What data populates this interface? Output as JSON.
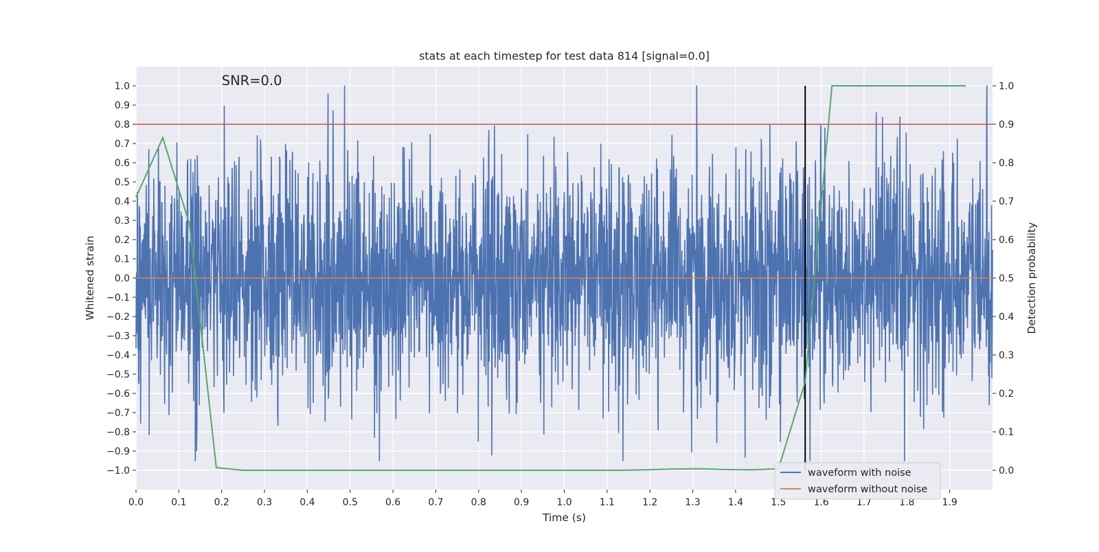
{
  "chart_data": {
    "type": "line",
    "title": "stats at each timestep for test data 814 [signal=0.0]",
    "xlabel": "Time (s)",
    "ylabel": "Whitened strain",
    "y2label": "Detection probability",
    "annotation": "SNR=0.0",
    "xlim": [
      0.0,
      2.0
    ],
    "ylim": [
      -1.1,
      1.1
    ],
    "y2lim": [
      -0.05,
      1.05
    ],
    "xticks": [
      "0.0",
      "0.1",
      "0.2",
      "0.3",
      "0.4",
      "0.5",
      "0.6",
      "0.7",
      "0.8",
      "0.9",
      "1.0",
      "1.1",
      "1.2",
      "1.3",
      "1.4",
      "1.5",
      "1.6",
      "1.7",
      "1.8",
      "1.9"
    ],
    "yticks": [
      "1.0",
      "0.9",
      "0.8",
      "0.7",
      "0.6",
      "0.5",
      "0.4",
      "0.3",
      "0.2",
      "0.1",
      "0.0",
      "−0.1",
      "−0.2",
      "−0.3",
      "−0.4",
      "−0.5",
      "−0.6",
      "−0.7",
      "−0.8",
      "−0.9",
      "−1.0"
    ],
    "y2ticks": [
      "1.0",
      "0.9",
      "0.8",
      "0.7",
      "0.6",
      "0.5",
      "0.4",
      "0.3",
      "0.2",
      "0.1",
      "0.0"
    ],
    "grid": true,
    "legend_position": "lower-right",
    "series": [
      {
        "name": "waveform with noise",
        "color": "#4c72b0",
        "axis": "left",
        "kind": "noise-trace",
        "sample_rate": 4096,
        "range": [
          -0.95,
          1.0
        ]
      },
      {
        "name": "waveform without noise",
        "color": "#dd8452",
        "axis": "left",
        "x": [
          0.0,
          2.0
        ],
        "values": [
          0.0,
          0.0
        ]
      },
      {
        "name": "detection probability",
        "color": "#55a868",
        "axis": "right",
        "x": [
          0.0,
          0.0625,
          0.125,
          0.1875,
          0.25,
          0.3125,
          0.375,
          0.4375,
          0.5,
          0.5625,
          0.625,
          0.6875,
          0.75,
          0.8125,
          0.875,
          0.9375,
          1.0,
          1.0625,
          1.125,
          1.1875,
          1.25,
          1.3125,
          1.375,
          1.4375,
          1.5,
          1.5625,
          1.625,
          1.6875,
          1.75,
          1.8125,
          1.875,
          1.9375
        ],
        "values": [
          0.71,
          0.865,
          0.64,
          0.007,
          0.0,
          0.0,
          0.0,
          0.0,
          0.0,
          0.0,
          0.0,
          0.0,
          0.0,
          0.0,
          0.0,
          0.0,
          0.0,
          0.0,
          0.0,
          0.001,
          0.003,
          0.004,
          0.002,
          0.001,
          0.004,
          0.23,
          1.0,
          1.0,
          1.0,
          1.0,
          1.0,
          1.0
        ]
      }
    ],
    "threshold": {
      "axis": "right",
      "value": 0.9,
      "color": "#c44e52"
    },
    "event_marker": {
      "x": 1.5625,
      "y_from": -1.0,
      "y_to": 1.0,
      "color": "#000000"
    }
  }
}
